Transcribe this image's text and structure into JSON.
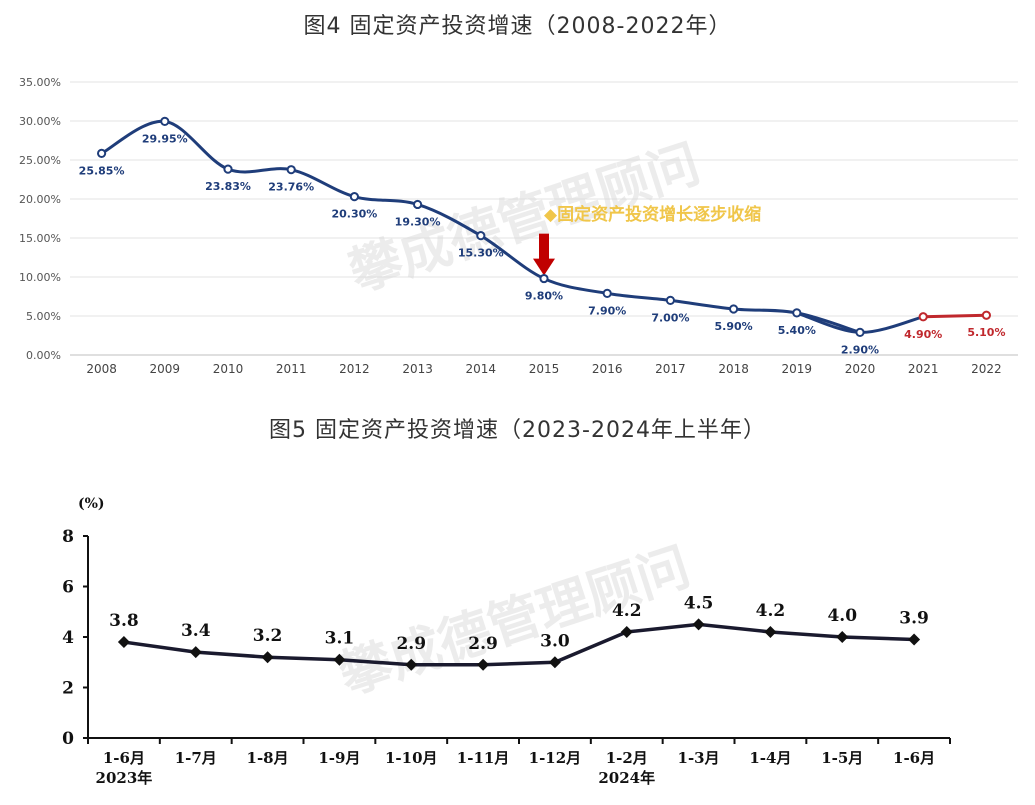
{
  "chart_data": [
    {
      "type": "line",
      "title": "图4 固定资产投资增速（2008-2022年）",
      "categories": [
        "2008",
        "2009",
        "2010",
        "2011",
        "2012",
        "2013",
        "2014",
        "2015",
        "2016",
        "2017",
        "2018",
        "2019",
        "2020",
        "2021",
        "2022"
      ],
      "series": [
        {
          "values": [
            25.85,
            29.95,
            23.83,
            23.76,
            20.3,
            19.3,
            15.3,
            9.8,
            7.9,
            7.0,
            5.9,
            5.4,
            2.9,
            4.9,
            5.1
          ],
          "labels": [
            "25.85%",
            "29.95%",
            "23.83%",
            "23.76%",
            "20.30%",
            "19.30%",
            "15.30%",
            "9.80%",
            "7.90%",
            "7.00%",
            "5.90%",
            "5.40%",
            "2.90%",
            "4.90%",
            "5.10%"
          ]
        }
      ],
      "yticks": [
        "0.00%",
        "5.00%",
        "10.00%",
        "15.00%",
        "20.00%",
        "25.00%",
        "30.00%",
        "35.00%"
      ],
      "ylim": [
        0,
        35
      ],
      "grid": true,
      "colors": {
        "main": "#1f3d7a",
        "highlight": "#c0282d",
        "annotation": "#f0c64a",
        "arrow": "#c00000"
      },
      "annotation": "固定资产投资增长逐步收缩"
    },
    {
      "type": "line",
      "title": "图5 固定资产投资增速（2023-2024年上半年）",
      "ylabel": "(%)",
      "categories": [
        "1-6月",
        "1-7月",
        "1-8月",
        "1-9月",
        "1-10月",
        "1-11月",
        "1-12月",
        "1-2月",
        "1-3月",
        "1-4月",
        "1-5月",
        "1-6月"
      ],
      "year_labels": [
        "2023年",
        "2024年"
      ],
      "series": [
        {
          "values": [
            3.8,
            3.4,
            3.2,
            3.1,
            2.9,
            2.9,
            3.0,
            4.2,
            4.5,
            4.2,
            4.0,
            3.9
          ],
          "labels": [
            "3.8",
            "3.4",
            "3.2",
            "3.1",
            "2.9",
            "2.9",
            "3.0",
            "4.2",
            "4.5",
            "4.2",
            "4.0",
            "3.9"
          ]
        }
      ],
      "yticks": [
        "0",
        "2",
        "4",
        "6",
        "8"
      ],
      "ylim": [
        0,
        8
      ],
      "colors": {
        "line": "#1a1a2e"
      }
    }
  ],
  "watermark": "攀成德管理顾问"
}
